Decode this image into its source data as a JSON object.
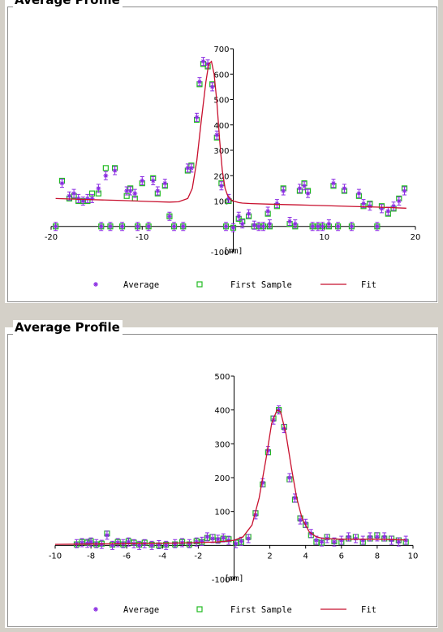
{
  "chart_data": [
    {
      "type": "scatter",
      "title": "Average Profile",
      "xlim": [
        -20,
        20
      ],
      "ylim": [
        -100,
        700
      ],
      "x_ticks": [
        "-20",
        "-10",
        "10",
        "20"
      ],
      "y_ticks": [
        "-100",
        "100",
        "200",
        "300",
        "400",
        "500",
        "600",
        "700"
      ],
      "x_ticks_values": [
        -20,
        -10,
        10,
        20
      ],
      "y_ticks_values": [
        -100,
        100,
        200,
        300,
        400,
        500,
        600,
        700
      ],
      "unit_label": "[mm]",
      "legend": [
        "Average",
        "First Sample",
        "Fit"
      ],
      "legend_placement": "bottom",
      "colors": {
        "average": "#8a2be2",
        "first_sample": "#22bb22",
        "fit": "#c8102e"
      },
      "series": [
        {
          "name": "Average",
          "x": [
            -19.5,
            -18.8,
            -18,
            -17.5,
            -17,
            -16.5,
            -16,
            -15.5,
            -14.8,
            -14.5,
            -14,
            -13.5,
            -13,
            -12.2,
            -11.7,
            -11.3,
            -10.8,
            -10.5,
            -10,
            -9.3,
            -8.8,
            -8.3,
            -7.5,
            -7,
            -6.5,
            -5.5,
            -5,
            -4.6,
            -4,
            -3.7,
            -3.3,
            -2.8,
            -2.3,
            -1.8,
            -1.3,
            -0.8,
            -0.5,
            0,
            0.6,
            1,
            1.7,
            2.3,
            2.8,
            3.3,
            3.8,
            4,
            4.8,
            5.5,
            6.2,
            6.8,
            7.3,
            7.8,
            8.2,
            8.7,
            9.3,
            9.8,
            10.5,
            11,
            11.5,
            12.2,
            13,
            13.8,
            14.3,
            15,
            15.8,
            16.3,
            17,
            17.6,
            18.2,
            18.8
          ],
          "y": [
            0,
            170,
            120,
            130,
            110,
            100,
            110,
            110,
            150,
            0,
            200,
            0,
            220,
            0,
            140,
            140,
            130,
            0,
            180,
            0,
            180,
            140,
            170,
            40,
            0,
            0,
            230,
            230,
            430,
            570,
            650,
            640,
            550,
            360,
            160,
            0,
            110,
            -5,
            40,
            10,
            50,
            5,
            0,
            0,
            60,
            10,
            90,
            140,
            20,
            10,
            150,
            160,
            130,
            0,
            0,
            0,
            10,
            170,
            0,
            150,
            0,
            130,
            90,
            80,
            0,
            70,
            60,
            80,
            100,
            140
          ]
        },
        {
          "name": "First Sample",
          "x": [
            -19.5,
            -18.8,
            -18,
            -17.5,
            -17,
            -16.5,
            -16,
            -15.5,
            -14.8,
            -14.5,
            -14,
            -13.5,
            -13,
            -12.2,
            -11.7,
            -11.3,
            -10.8,
            -10.5,
            -10,
            -9.3,
            -8.8,
            -8.3,
            -7.5,
            -7,
            -6.5,
            -5.5,
            -5,
            -4.6,
            -4,
            -3.7,
            -3.3,
            -2.8,
            -2.3,
            -1.8,
            -1.3,
            -0.8,
            -0.5,
            0,
            0.6,
            1,
            1.7,
            2.3,
            2.8,
            3.3,
            3.8,
            4,
            4.8,
            5.5,
            6.2,
            6.8,
            7.3,
            7.8,
            8.2,
            8.7,
            9.3,
            9.8,
            10.5,
            11,
            11.5,
            12.2,
            13,
            13.8,
            14.3,
            15,
            15.8,
            16.3,
            17,
            17.6,
            18.2,
            18.8
          ],
          "y": [
            0,
            180,
            110,
            120,
            100,
            100,
            100,
            130,
            130,
            0,
            230,
            0,
            230,
            0,
            120,
            150,
            110,
            0,
            170,
            0,
            190,
            130,
            160,
            40,
            0,
            0,
            220,
            240,
            420,
            560,
            640,
            630,
            560,
            350,
            170,
            0,
            100,
            -5,
            30,
            20,
            40,
            0,
            0,
            0,
            50,
            0,
            80,
            150,
            10,
            0,
            140,
            170,
            140,
            0,
            0,
            0,
            0,
            160,
            0,
            140,
            0,
            120,
            80,
            90,
            0,
            80,
            50,
            70,
            110,
            150
          ]
        }
      ],
      "fit": {
        "name": "Fit",
        "x": [
          -19.5,
          -16,
          -12,
          -9,
          -7,
          -6,
          -5,
          -4.5,
          -4,
          -3.5,
          -3,
          -2.7,
          -2.4,
          -2.1,
          -1.8,
          -1.5,
          -1.2,
          -0.9,
          -0.6,
          -0.3,
          0,
          0.3,
          0.6,
          1,
          2,
          4,
          7,
          10,
          13,
          16,
          19
        ],
        "y": [
          110,
          106,
          102,
          98,
          96,
          97,
          110,
          150,
          260,
          420,
          570,
          640,
          650,
          600,
          490,
          340,
          220,
          150,
          120,
          107,
          100,
          97,
          94,
          92,
          90,
          88,
          85,
          82,
          79,
          76,
          72
        ]
      }
    },
    {
      "type": "scatter",
      "title": "Average Profile",
      "xlim": [
        -10,
        10
      ],
      "ylim": [
        -100,
        500
      ],
      "x_ticks": [
        "-10",
        "-8",
        "-6",
        "-4",
        "-2",
        "2",
        "4",
        "6",
        "8",
        "10"
      ],
      "y_ticks": [
        "-100",
        "100",
        "200",
        "300",
        "400",
        "500"
      ],
      "x_ticks_values": [
        -10,
        -8,
        -6,
        -4,
        -2,
        2,
        4,
        6,
        8,
        10
      ],
      "y_ticks_values": [
        -100,
        100,
        200,
        300,
        400,
        500
      ],
      "unit_label": "[mm]",
      "legend": [
        "Average",
        "First Sample",
        "Fit"
      ],
      "legend_placement": "bottom",
      "colors": {
        "average": "#8a2be2",
        "first_sample": "#22bb22",
        "fit": "#c8102e"
      },
      "series": [
        {
          "name": "Average",
          "x": [
            -8.8,
            -8.5,
            -8.2,
            -8,
            -7.7,
            -7.4,
            -7.1,
            -6.8,
            -6.5,
            -6.2,
            -5.9,
            -5.6,
            -5.3,
            -5,
            -4.6,
            -4.2,
            -3.8,
            -3.3,
            -2.9,
            -2.5,
            -2.1,
            -1.8,
            -1.5,
            -1.2,
            -0.9,
            -0.6,
            -0.3,
            0.1,
            0.4,
            0.8,
            1.2,
            1.6,
            1.9,
            2.2,
            2.5,
            2.8,
            3.1,
            3.4,
            3.7,
            4,
            4.3,
            4.6,
            4.9,
            5.2,
            5.6,
            6,
            6.4,
            6.8,
            7.2,
            7.6,
            8,
            8.4,
            8.8,
            9.2,
            9.6
          ],
          "y": [
            5,
            8,
            6,
            10,
            5,
            3,
            30,
            0,
            8,
            5,
            10,
            5,
            0,
            5,
            0,
            2,
            0,
            5,
            8,
            5,
            10,
            12,
            25,
            20,
            18,
            22,
            15,
            5,
            12,
            20,
            90,
            185,
            280,
            370,
            400,
            345,
            200,
            140,
            75,
            65,
            35,
            15,
            10,
            20,
            10,
            15,
            25,
            20,
            15,
            25,
            25,
            25,
            15,
            10,
            15
          ]
        },
        {
          "name": "First Sample",
          "x": [
            -8.8,
            -8.5,
            -8.2,
            -8,
            -7.7,
            -7.4,
            -7.1,
            -6.8,
            -6.5,
            -6.2,
            -5.9,
            -5.6,
            -5.3,
            -5,
            -4.6,
            -4.2,
            -3.8,
            -3.3,
            -2.9,
            -2.5,
            -2.1,
            -1.8,
            -1.5,
            -1.2,
            -0.9,
            -0.6,
            -0.3,
            0.1,
            0.4,
            0.8,
            1.2,
            1.6,
            1.9,
            2.2,
            2.5,
            2.8,
            3.1,
            3.4,
            3.7,
            4,
            4.3,
            4.6,
            4.9,
            5.2,
            5.6,
            6,
            6.4,
            6.8,
            7.2,
            7.6,
            8,
            8.4,
            8.8,
            9.2,
            9.6
          ],
          "y": [
            3,
            10,
            8,
            12,
            3,
            5,
            35,
            2,
            10,
            3,
            12,
            8,
            2,
            8,
            2,
            0,
            2,
            3,
            10,
            3,
            12,
            10,
            22,
            25,
            15,
            20,
            18,
            8,
            10,
            25,
            95,
            180,
            275,
            375,
            400,
            350,
            195,
            135,
            80,
            60,
            30,
            10,
            8,
            25,
            12,
            10,
            20,
            25,
            10,
            20,
            30,
            20,
            20,
            15,
            10
          ]
        }
      ],
      "fit": {
        "name": "Fit",
        "x": [
          -10,
          -8,
          -6,
          -4,
          -2,
          -1,
          -0.5,
          0,
          0.5,
          1,
          1.4,
          1.8,
          2.1,
          2.4,
          2.6,
          2.9,
          3.2,
          3.5,
          3.8,
          4.2,
          4.6,
          5,
          6,
          7,
          8,
          9,
          9.6
        ],
        "y": [
          3,
          4,
          5,
          6,
          8,
          10,
          12,
          15,
          25,
          60,
          140,
          260,
          360,
          400,
          395,
          330,
          230,
          140,
          80,
          40,
          25,
          20,
          18,
          18,
          18,
          17,
          16
        ]
      }
    }
  ]
}
